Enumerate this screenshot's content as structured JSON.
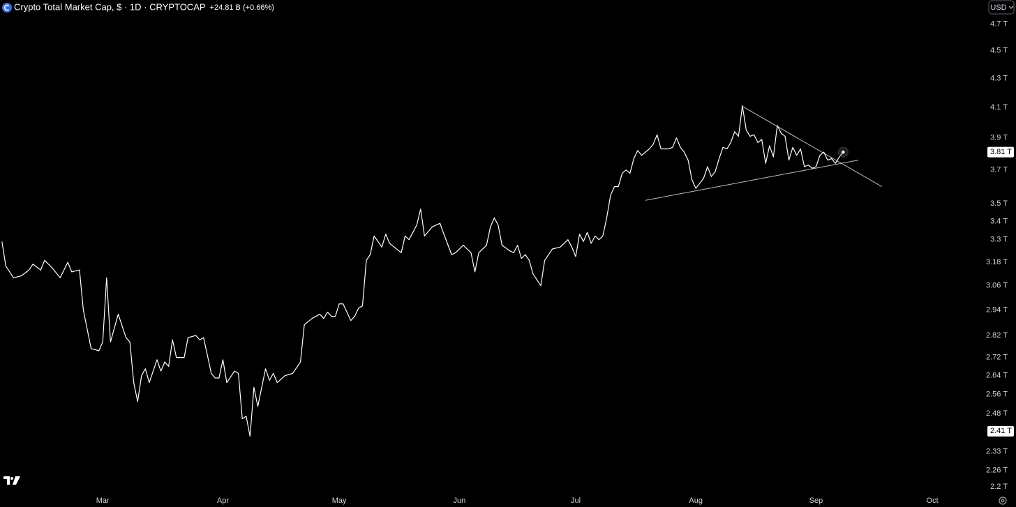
{
  "chart_data": {
    "type": "line",
    "title": "Crypto Total Market Cap, $ · 1D · CRYPTOCAP",
    "change_label": "+24.81 B (+0.66%)",
    "currency": "USD",
    "color": "#ffffff",
    "log_scale": true,
    "grid": false,
    "x": [
      34,
      35,
      37,
      39,
      41,
      42,
      44,
      45,
      47,
      49,
      51,
      52,
      54,
      55,
      57,
      59,
      60,
      61,
      62,
      64,
      66,
      67,
      68,
      69,
      70,
      71,
      72,
      74,
      75,
      76,
      77,
      78,
      79,
      81,
      82,
      84,
      85,
      86,
      87,
      88,
      89,
      90,
      91,
      92,
      94,
      95,
      96,
      97,
      98,
      99,
      100,
      102,
      103,
      104,
      105,
      107,
      109,
      111,
      112,
      114,
      116,
      117,
      118,
      119,
      120,
      121,
      122,
      124,
      125,
      126,
      127,
      128,
      129,
      130,
      132,
      133,
      134,
      137,
      138,
      139,
      141,
      142,
      143,
      145,
      147,
      148,
      150,
      151,
      153,
      155,
      156,
      157,
      159,
      160,
      161,
      162,
      163,
      165,
      166,
      167,
      168,
      169,
      170,
      171,
      173,
      174,
      176,
      178,
      180,
      181,
      182,
      183,
      184,
      185,
      186,
      187,
      188,
      189,
      190,
      191,
      192,
      193,
      194,
      195,
      196,
      197,
      198,
      199,
      201,
      202,
      203,
      204,
      206,
      207,
      208,
      209,
      210,
      211,
      212,
      213,
      215,
      216,
      217,
      218,
      219,
      220,
      221,
      222,
      223,
      224,
      225,
      226,
      227,
      228,
      229,
      230,
      231,
      232,
      233,
      234,
      235,
      236,
      237,
      238,
      239,
      240,
      241,
      242,
      243,
      244,
      245,
      246,
      247,
      248,
      249,
      250,
      251
    ],
    "values": [
      3.29,
      3.16,
      3.1,
      3.11,
      3.14,
      3.17,
      3.14,
      3.19,
      3.15,
      3.1,
      3.18,
      3.13,
      3.14,
      2.94,
      2.76,
      2.75,
      2.79,
      3.1,
      2.79,
      2.92,
      2.81,
      2.79,
      2.61,
      2.53,
      2.64,
      2.67,
      2.61,
      2.71,
      2.66,
      2.7,
      2.68,
      2.8,
      2.72,
      2.72,
      2.81,
      2.82,
      2.8,
      2.81,
      2.73,
      2.65,
      2.63,
      2.63,
      2.71,
      2.61,
      2.66,
      2.65,
      2.46,
      2.47,
      2.39,
      2.59,
      2.51,
      2.67,
      2.62,
      2.65,
      2.61,
      2.64,
      2.65,
      2.7,
      2.87,
      2.9,
      2.92,
      2.9,
      2.93,
      2.91,
      2.91,
      2.97,
      2.97,
      2.89,
      2.91,
      2.95,
      2.96,
      3.19,
      3.22,
      3.32,
      3.26,
      3.33,
      3.28,
      3.23,
      3.32,
      3.3,
      3.38,
      3.47,
      3.32,
      3.37,
      3.39,
      3.33,
      3.22,
      3.23,
      3.27,
      3.23,
      3.13,
      3.23,
      3.27,
      3.37,
      3.42,
      3.38,
      3.27,
      3.24,
      3.23,
      3.27,
      3.2,
      3.22,
      3.19,
      3.12,
      3.06,
      3.19,
      3.25,
      3.26,
      3.3,
      3.26,
      3.21,
      3.33,
      3.29,
      3.34,
      3.28,
      3.32,
      3.3,
      3.32,
      3.42,
      3.55,
      3.6,
      3.6,
      3.68,
      3.7,
      3.68,
      3.77,
      3.82,
      3.79,
      3.83,
      3.86,
      3.92,
      3.83,
      3.83,
      3.84,
      3.9,
      3.84,
      3.81,
      3.76,
      3.64,
      3.59,
      3.65,
      3.72,
      3.66,
      3.69,
      3.77,
      3.84,
      3.83,
      3.87,
      3.94,
      3.91,
      4.11,
      3.95,
      3.91,
      3.92,
      3.87,
      3.89,
      3.74,
      3.85,
      3.78,
      3.98,
      3.93,
      3.91,
      3.76,
      3.84,
      3.79,
      3.83,
      3.72,
      3.73,
      3.71,
      3.72,
      3.79,
      3.81,
      3.76,
      3.77,
      3.74,
      3.78,
      3.81
    ],
    "xlim": [
      33.5,
      287.3
    ],
    "xticks": [
      {
        "value": 60,
        "label": "Mar"
      },
      {
        "value": 91,
        "label": "Apr"
      },
      {
        "value": 121,
        "label": "May"
      },
      {
        "value": 152,
        "label": "Jun"
      },
      {
        "value": 182,
        "label": "Jul"
      },
      {
        "value": 213,
        "label": "Aug"
      },
      {
        "value": 244,
        "label": "Sep"
      },
      {
        "value": 274,
        "label": "Oct"
      }
    ],
    "ylim": [
      2.17,
      4.89
    ],
    "yticks": [
      {
        "value": 4.7,
        "label": "4.7 T"
      },
      {
        "value": 4.5,
        "label": "4.5 T"
      },
      {
        "value": 4.3,
        "label": "4.3 T"
      },
      {
        "value": 4.1,
        "label": "4.1 T"
      },
      {
        "value": 3.9,
        "label": "3.9 T"
      },
      {
        "value": 3.7,
        "label": "3.7 T"
      },
      {
        "value": 3.5,
        "label": "3.5 T"
      },
      {
        "value": 3.4,
        "label": "3.4 T"
      },
      {
        "value": 3.3,
        "label": "3.3 T"
      },
      {
        "value": 3.18,
        "label": "3.18 T"
      },
      {
        "value": 3.06,
        "label": "3.06 T"
      },
      {
        "value": 2.94,
        "label": "2.94 T"
      },
      {
        "value": 2.82,
        "label": "2.82 T"
      },
      {
        "value": 2.72,
        "label": "2.72 T"
      },
      {
        "value": 2.64,
        "label": "2.64 T"
      },
      {
        "value": 2.56,
        "label": "2.56 T"
      },
      {
        "value": 2.48,
        "label": "2.48 T"
      },
      {
        "value": 2.33,
        "label": "2.33 T"
      },
      {
        "value": 2.26,
        "label": "2.26 T"
      },
      {
        "value": 2.2,
        "label": "2.2 T"
      }
    ],
    "price_labels": [
      {
        "value": 3.81,
        "label": "3.81 T"
      },
      {
        "value": 2.41,
        "label": "2.41 T"
      }
    ],
    "trendlines": [
      {
        "x": [
          224.8,
          261.0
        ],
        "y": [
          4.11,
          3.6
        ]
      },
      {
        "x": [
          200.0,
          254.9
        ],
        "y": [
          3.52,
          3.76
        ]
      }
    ]
  }
}
